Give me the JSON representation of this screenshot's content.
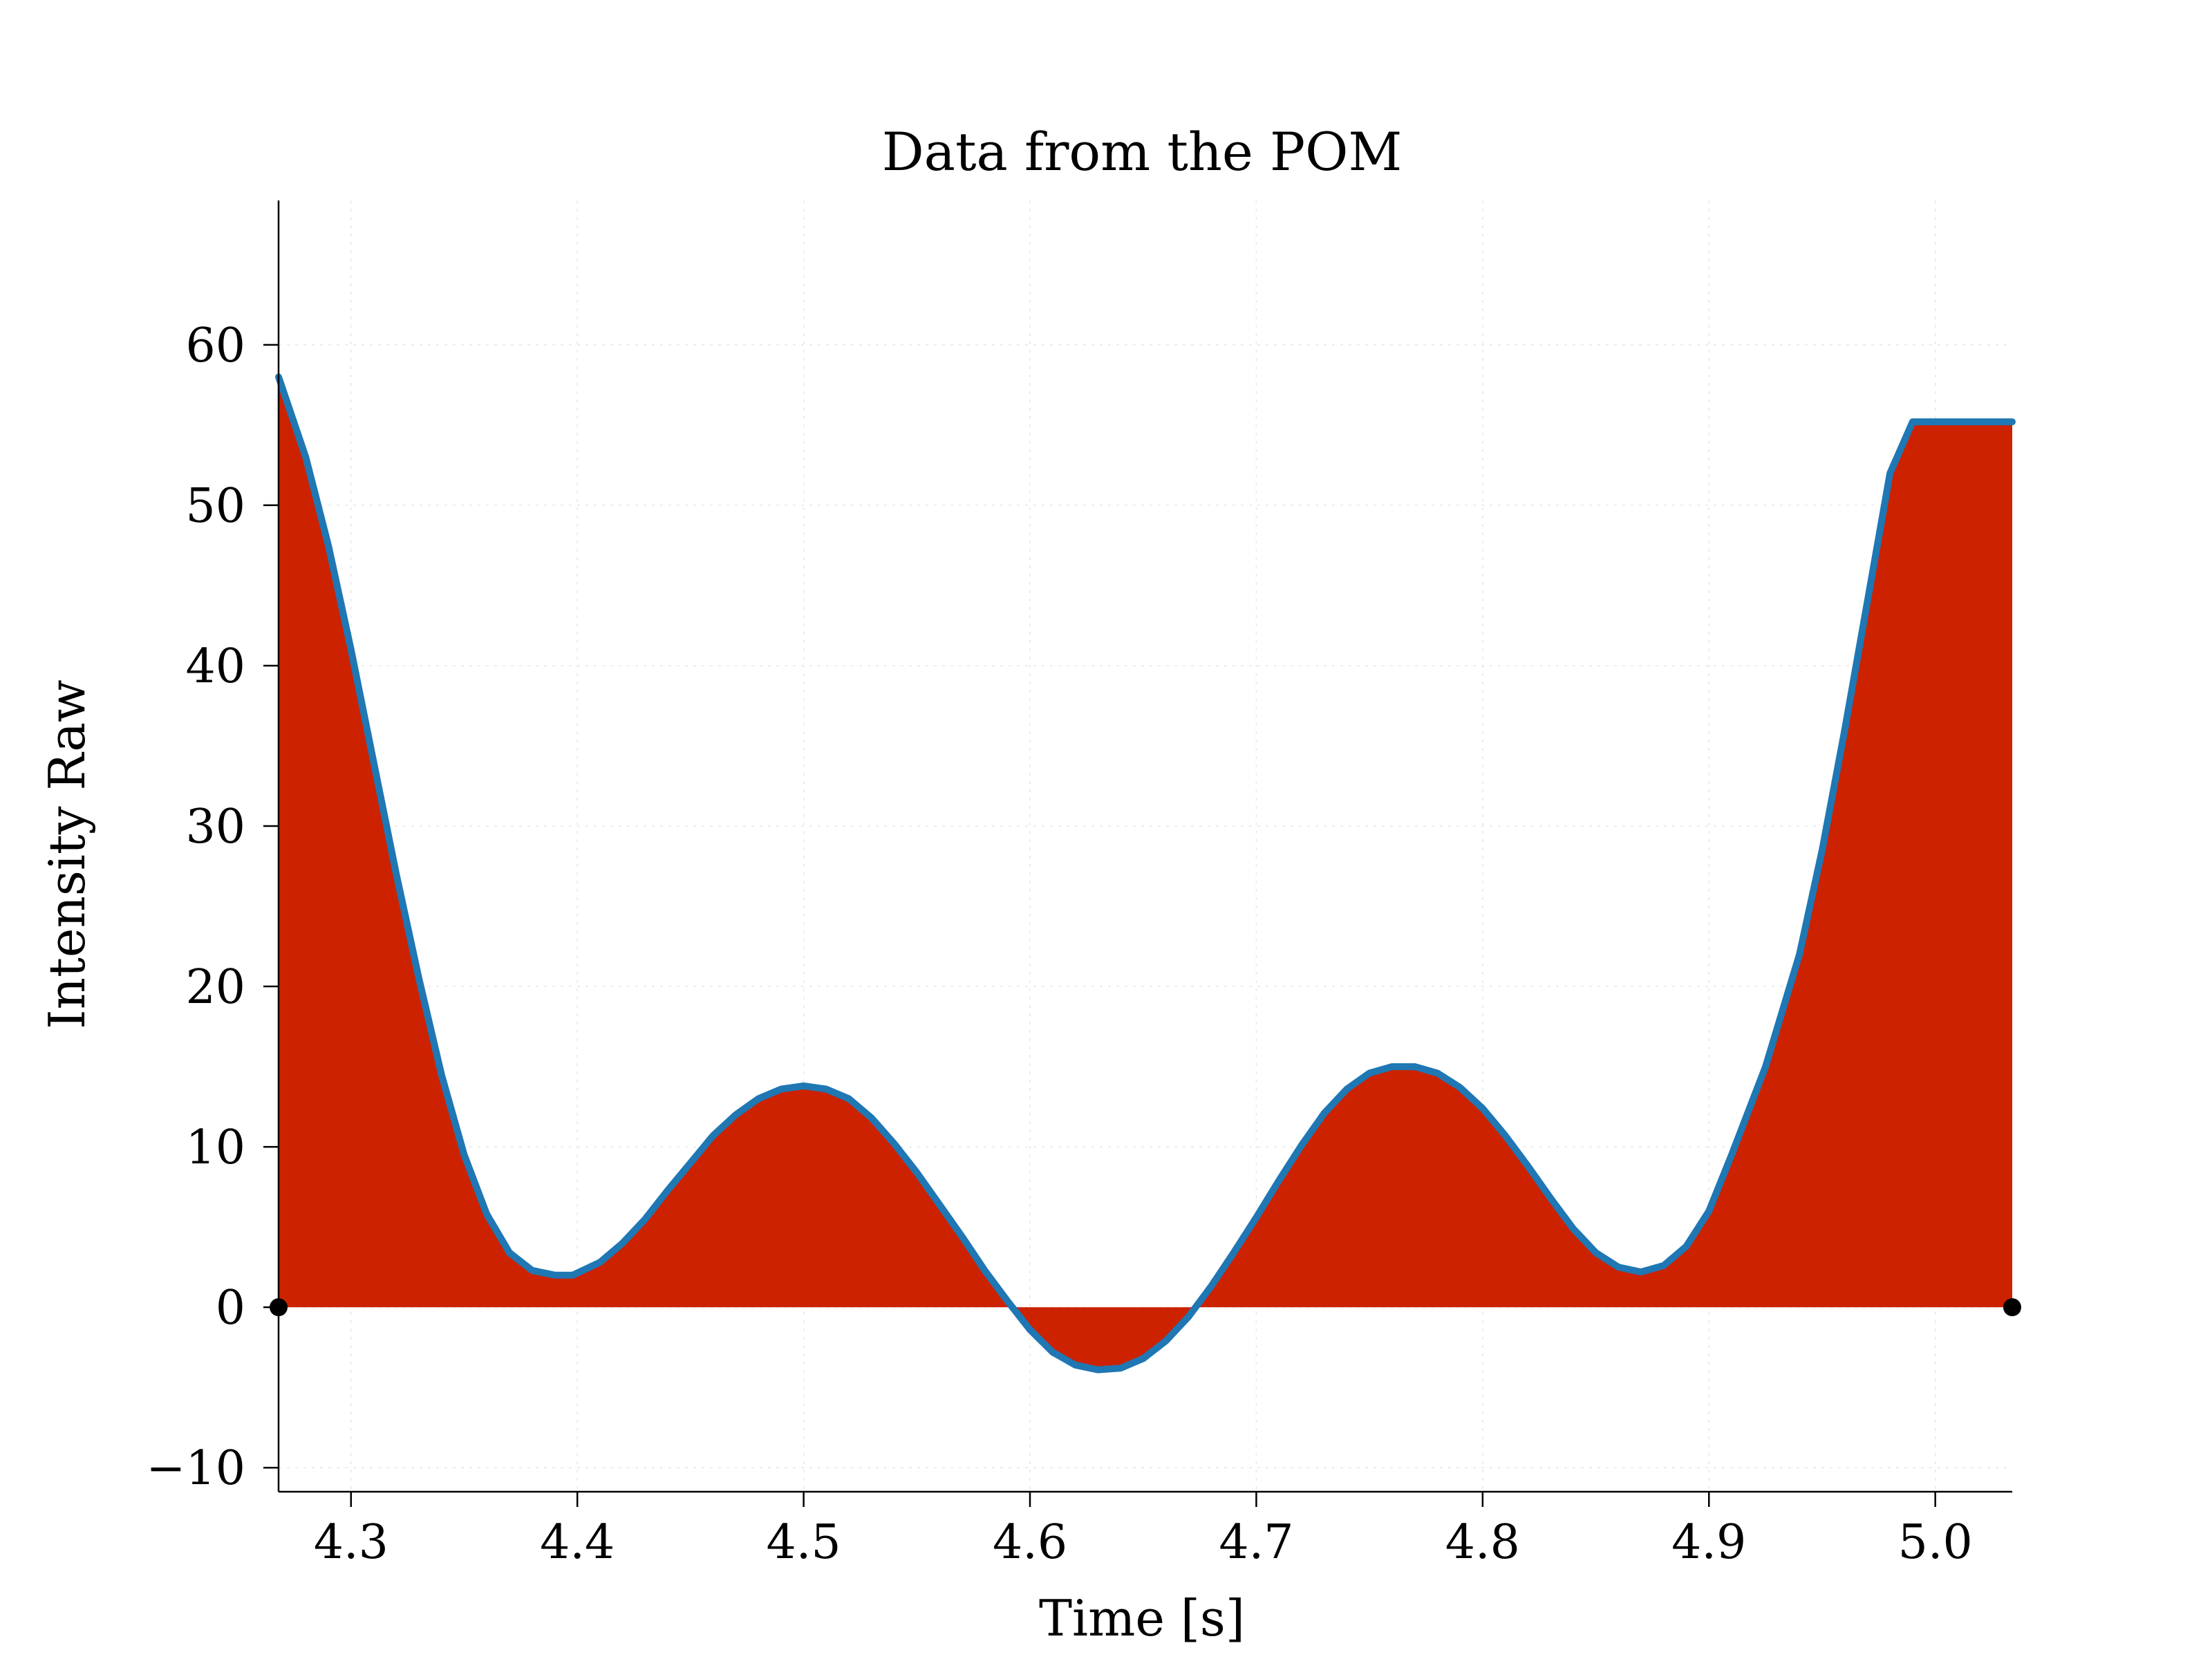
{
  "chart_data": {
    "type": "area",
    "title": "Data from the POM",
    "xlabel": "Time [s]",
    "ylabel": "Intensity Raw",
    "xlim": [
      4.268,
      5.034
    ],
    "ylim": [
      -11.5,
      69
    ],
    "xticks": [
      4.3,
      4.4,
      4.5,
      4.6,
      4.7,
      4.8,
      4.9,
      5.0
    ],
    "xtick_labels": [
      "4.3",
      "4.4",
      "4.5",
      "4.6",
      "4.7",
      "4.8",
      "4.9",
      "5.0"
    ],
    "yticks": [
      -10,
      0,
      10,
      20,
      30,
      40,
      50,
      60
    ],
    "ytick_labels": [
      "−10",
      "0",
      "10",
      "20",
      "30",
      "40",
      "50",
      "60"
    ],
    "grid": true,
    "series": [
      {
        "x": [
          4.268,
          4.28,
          4.29,
          4.3,
          4.31,
          4.32,
          4.33,
          4.34,
          4.35,
          4.36,
          4.37,
          4.38,
          4.39,
          4.398,
          4.41,
          4.42,
          4.43,
          4.44,
          4.45,
          4.46,
          4.47,
          4.48,
          4.49,
          4.5,
          4.51,
          4.52,
          4.53,
          4.54,
          4.55,
          4.56,
          4.57,
          4.58,
          4.59,
          4.6,
          4.61,
          4.62,
          4.63,
          4.64,
          4.65,
          4.66,
          4.67,
          4.68,
          4.69,
          4.7,
          4.71,
          4.72,
          4.73,
          4.74,
          4.75,
          4.76,
          4.77,
          4.78,
          4.79,
          4.8,
          4.81,
          4.82,
          4.83,
          4.84,
          4.85,
          4.86,
          4.87,
          4.88,
          4.89,
          4.9,
          4.91,
          4.925,
          4.94,
          4.95,
          4.96,
          4.97,
          4.98,
          4.99,
          5.0,
          5.01,
          5.02,
          5.034
        ],
        "y": [
          58,
          53,
          47.5,
          41,
          34,
          27,
          20.5,
          14.5,
          9.5,
          5.8,
          3.4,
          2.3,
          2.0,
          2.0,
          2.8,
          4.0,
          5.5,
          7.3,
          9.0,
          10.7,
          12.0,
          13.0,
          13.6,
          13.8,
          13.6,
          13.0,
          11.8,
          10.2,
          8.4,
          6.4,
          4.4,
          2.3,
          0.4,
          -1.4,
          -2.8,
          -3.6,
          -3.9,
          -3.8,
          -3.2,
          -2.1,
          -0.6,
          1.3,
          3.4,
          5.6,
          7.9,
          10.1,
          12.1,
          13.6,
          14.6,
          15.0,
          15.0,
          14.6,
          13.7,
          12.4,
          10.7,
          8.8,
          6.8,
          4.9,
          3.4,
          2.5,
          2.2,
          2.6,
          3.8,
          6.0,
          9.5,
          15.0,
          22.0,
          28.5,
          36.0,
          44.0,
          52.0,
          55.2,
          55.2,
          55.2,
          55.2,
          55.2
        ]
      }
    ],
    "colors": {
      "line": "#1f77b4",
      "fill": "#cc2200",
      "axis": "#000000",
      "grid": "#e6e6e6"
    },
    "markers": [
      {
        "x": 4.268,
        "y": 0
      },
      {
        "x": 5.034,
        "y": 0
      }
    ]
  }
}
